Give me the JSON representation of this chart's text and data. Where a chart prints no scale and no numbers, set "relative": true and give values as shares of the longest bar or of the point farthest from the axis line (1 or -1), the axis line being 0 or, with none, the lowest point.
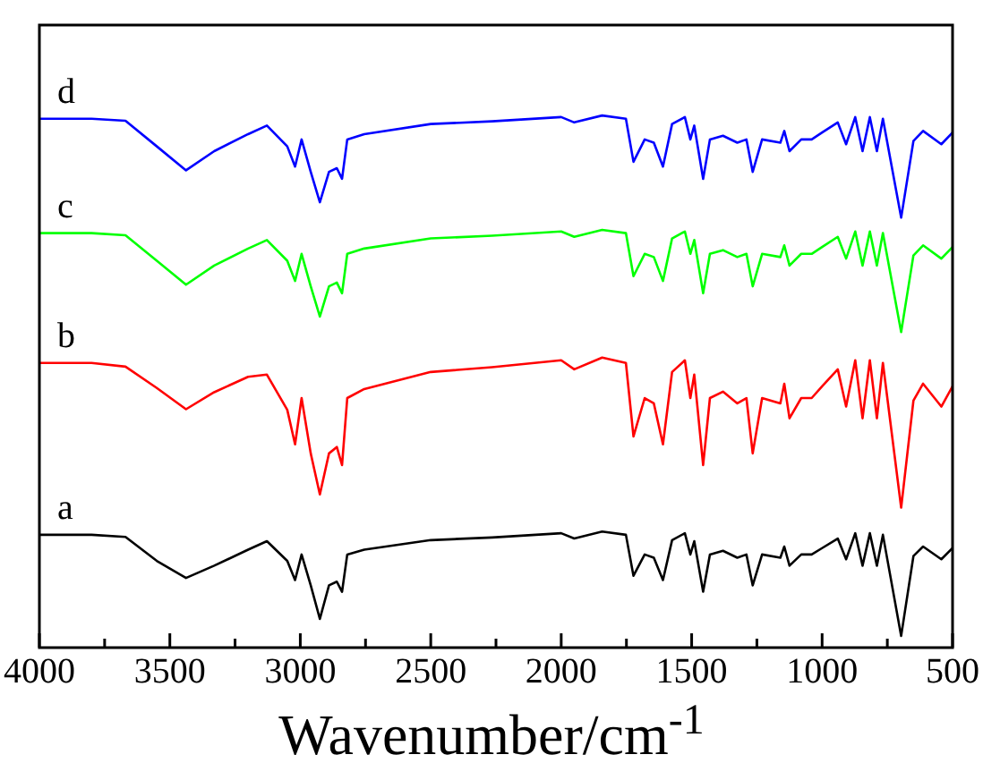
{
  "chart_data": {
    "type": "line",
    "relative": true,
    "xlabel": "Wavenumber/cm$^{-1}$",
    "xlim": [
      4000,
      500
    ],
    "xticks": [
      4000,
      {
        "value": 3750,
        "label": null
      },
      3500,
      {
        "value": 3250,
        "label": null
      },
      3000,
      {
        "value": 2750,
        "label": null
      },
      2500,
      {
        "value": 2250,
        "label": null
      },
      2000,
      {
        "value": 1750,
        "label": null
      },
      1500,
      {
        "value": 1250,
        "label": null
      },
      1000,
      {
        "value": 750,
        "label": null
      },
      500
    ],
    "grid": false,
    "legend": false,
    "marker": "none",
    "line_style": "solid",
    "x": [
      4000,
      3800,
      3670,
      3550,
      3438,
      3330,
      3200,
      3128,
      3050,
      3020,
      2995,
      2960,
      2925,
      2890,
      2860,
      2840,
      2820,
      2755,
      2500,
      2265,
      2000,
      1950,
      1843,
      1752,
      1723,
      1680,
      1645,
      1610,
      1575,
      1526,
      1505,
      1490,
      1456,
      1430,
      1380,
      1325,
      1290,
      1266,
      1230,
      1160,
      1145,
      1125,
      1080,
      1040,
      1000,
      940,
      908,
      873,
      845,
      817,
      790,
      767,
      697,
      650,
      613,
      543,
      500
    ],
    "series": [
      {
        "name": "a",
        "color": "#000000",
        "values": [
          0.212,
          0.212,
          0.208,
          0.163,
          0.131,
          0.154,
          0.184,
          0.2,
          0.163,
          0.127,
          0.175,
          0.117,
          0.054,
          0.117,
          0.124,
          0.105,
          0.175,
          0.184,
          0.202,
          0.207,
          0.215,
          0.205,
          0.218,
          0.212,
          0.135,
          0.175,
          0.169,
          0.127,
          0.202,
          0.215,
          0.175,
          0.2,
          0.105,
          0.175,
          0.182,
          0.169,
          0.175,
          0.117,
          0.175,
          0.169,
          0.19,
          0.154,
          0.175,
          0.175,
          0.187,
          0.205,
          0.166,
          0.215,
          0.154,
          0.215,
          0.154,
          0.212,
          0.022,
          0.172,
          0.19,
          0.166,
          0.187
        ]
      },
      {
        "name": "b",
        "color": "#ff0000",
        "values": [
          0.535,
          0.535,
          0.528,
          0.488,
          0.448,
          0.48,
          0.509,
          0.513,
          0.447,
          0.382,
          0.469,
          0.365,
          0.288,
          0.365,
          0.377,
          0.343,
          0.469,
          0.486,
          0.518,
          0.527,
          0.54,
          0.523,
          0.545,
          0.535,
          0.397,
          0.469,
          0.459,
          0.382,
          0.518,
          0.54,
          0.469,
          0.513,
          0.343,
          0.469,
          0.481,
          0.459,
          0.469,
          0.365,
          0.469,
          0.459,
          0.496,
          0.431,
          0.469,
          0.469,
          0.491,
          0.523,
          0.453,
          0.54,
          0.431,
          0.54,
          0.431,
          0.535,
          0.263,
          0.464,
          0.496,
          0.453,
          0.491
        ]
      },
      {
        "name": "c",
        "color": "#00ff00",
        "values": [
          0.779,
          0.779,
          0.775,
          0.727,
          0.682,
          0.718,
          0.75,
          0.766,
          0.727,
          0.689,
          0.74,
          0.679,
          0.622,
          0.679,
          0.686,
          0.666,
          0.74,
          0.75,
          0.769,
          0.774,
          0.782,
          0.772,
          0.785,
          0.779,
          0.698,
          0.74,
          0.734,
          0.689,
          0.769,
          0.782,
          0.74,
          0.766,
          0.666,
          0.74,
          0.747,
          0.734,
          0.74,
          0.679,
          0.74,
          0.734,
          0.756,
          0.718,
          0.74,
          0.74,
          0.753,
          0.772,
          0.731,
          0.782,
          0.718,
          0.782,
          0.718,
          0.779,
          0.593,
          0.737,
          0.756,
          0.731,
          0.753
        ]
      },
      {
        "name": "d",
        "color": "#0000ff",
        "values": [
          0.994,
          0.994,
          0.99,
          0.942,
          0.897,
          0.933,
          0.965,
          0.981,
          0.942,
          0.904,
          0.955,
          0.894,
          0.837,
          0.894,
          0.901,
          0.881,
          0.955,
          0.965,
          0.984,
          0.989,
          0.997,
          0.987,
          1,
          0.994,
          0.913,
          0.955,
          0.949,
          0.904,
          0.984,
          0.997,
          0.955,
          0.981,
          0.881,
          0.955,
          0.962,
          0.949,
          0.955,
          0.894,
          0.955,
          0.949,
          0.971,
          0.933,
          0.955,
          0.955,
          0.968,
          0.987,
          0.946,
          0.997,
          0.933,
          0.997,
          0.933,
          0.994,
          0.808,
          0.952,
          0.971,
          0.946,
          0.968
        ]
      }
    ]
  }
}
